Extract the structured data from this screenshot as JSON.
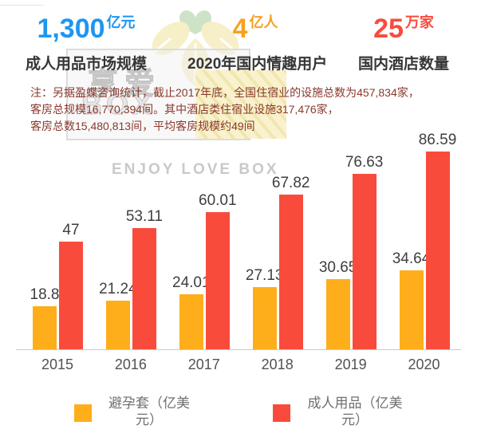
{
  "stats": [
    {
      "value": "1,300",
      "unit": "亿元",
      "label": "成人用品市场规模",
      "color": "#1E96F0"
    },
    {
      "value": "4",
      "unit": "亿人",
      "label": "2020年国内情趣用户",
      "color": "#F7A11E"
    },
    {
      "value": "25",
      "unit": "万家",
      "label": "国内酒店数量",
      "color": "#F94B3C"
    }
  ],
  "note": {
    "line1": "注：另据盈蝶咨询统计，截止2017年底，全国住宿业的设施总数为457,834家，",
    "line2": "客房总规模16,770,394间。其中酒店类住宿业设施317,476家，",
    "line3": "客房总数15,480,813间，平均客房规模约49间"
  },
  "watermark": {
    "cn": "享爱",
    "box": "BOX",
    "en": "ENJOY LOVE BOX"
  },
  "chart_data": {
    "type": "bar",
    "categories": [
      "2015",
      "2016",
      "2017",
      "2018",
      "2019",
      "2020"
    ],
    "series": [
      {
        "name": "避孕套（亿美元）",
        "color": "#FEAE1A",
        "values": [
          18.8,
          21.24,
          24.01,
          27.13,
          30.65,
          34.64
        ]
      },
      {
        "name": "成人用品（亿美元）",
        "color": "#F94B3C",
        "values": [
          47,
          53.11,
          60.01,
          67.82,
          76.63,
          86.59
        ]
      }
    ],
    "ylim": [
      0,
      95
    ],
    "grid": false,
    "value_labels": true,
    "legend_position": "bottom"
  },
  "legend": {
    "items": [
      {
        "line1": "避孕套（亿美",
        "line2": "元）",
        "color": "#FEAE1A"
      },
      {
        "line1": "成人用品（亿美",
        "line2": "元）",
        "color": "#F94B3C"
      }
    ]
  },
  "colors": {
    "axis": "#c9c9c9",
    "note_text": "#8a382c",
    "value_label": "#3e3e3e"
  }
}
